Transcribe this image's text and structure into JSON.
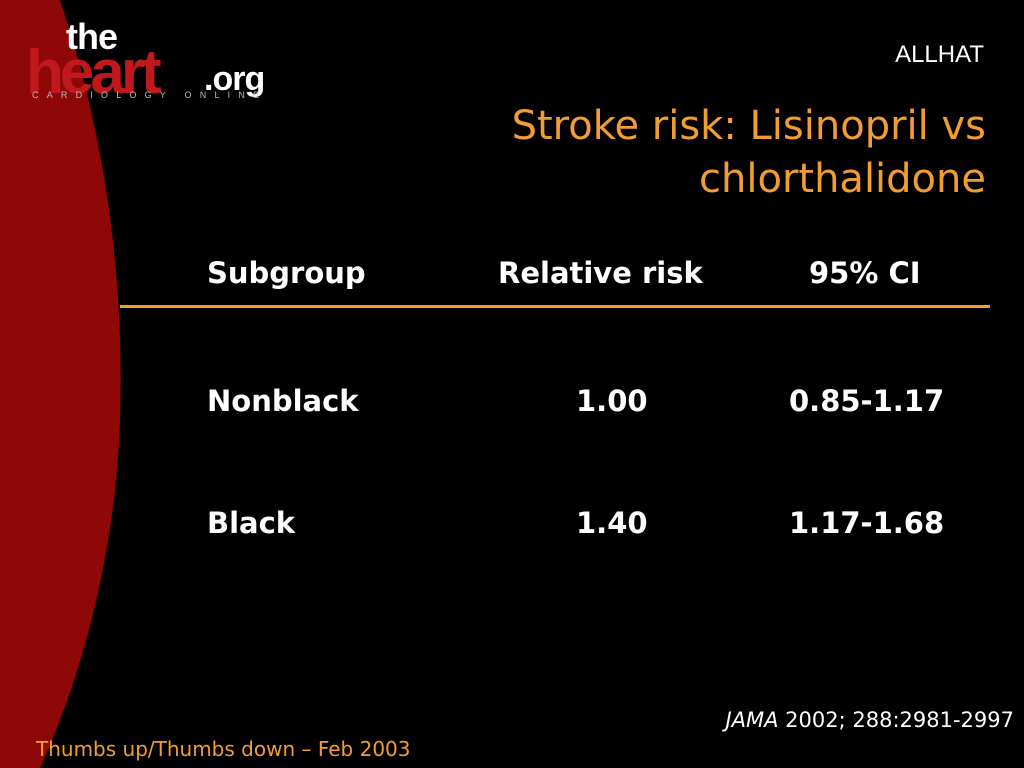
{
  "logo": {
    "the": "the",
    "heart": "heart",
    "org": ".org",
    "tagline": "CARDIOLOGY ONLINE",
    "brand_red": "#c0181d"
  },
  "study": "ALLHAT",
  "title_lines": [
    "Stroke risk: Lisinopril vs",
    "chlorthalidone"
  ],
  "table": {
    "headers": [
      "Subgroup",
      "Relative risk",
      "95% CI"
    ],
    "rows": [
      [
        "Nonblack",
        "1.00",
        "0.85-1.17"
      ],
      [
        "Black",
        "1.40",
        "1.17-1.68"
      ]
    ]
  },
  "citation": {
    "journal": "JAMA",
    "details": " 2002; 288:2981-2997"
  },
  "footer": "Thumbs up/Thumbs down – Feb 2003",
  "colors": {
    "background": "#000000",
    "accent_orange": "#f29d33",
    "arc_red": "#8f0808"
  }
}
